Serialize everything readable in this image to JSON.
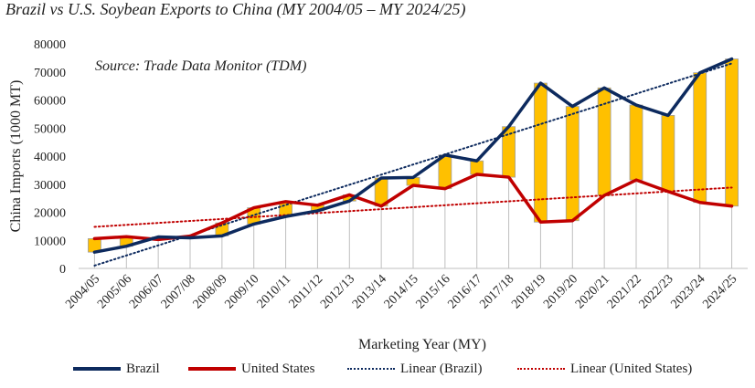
{
  "title": "Brazil vs U.S. Soybean Exports to China (MY 2004/05 – MY 2024/25)",
  "source": "Source: Trade Data Monitor (TDM)",
  "colors": {
    "brazil": "#0d2a5e",
    "united_states": "#c00000",
    "gap_bar": "#ffc000",
    "gap_bar_stroke": "#a0a0a0",
    "grid": "#d9d9d9"
  },
  "chart_data": {
    "type": "line",
    "title": "Brazil vs U.S. Soybean Exports to China (MY 2004/05 – MY 2024/25)",
    "xlabel": "Marketing Year (MY)",
    "ylabel": "China Imports (1000 MT)",
    "ylim": [
      0,
      80000
    ],
    "yticks": [
      0,
      10000,
      20000,
      30000,
      40000,
      50000,
      60000,
      70000,
      80000
    ],
    "grid": false,
    "legend_position": "bottom",
    "categories": [
      "2004/05",
      "2005/06",
      "2006/07",
      "2007/08",
      "2008/09",
      "2009/10",
      "2010/11",
      "2011/12",
      "2012/13",
      "2013/14",
      "2014/15",
      "2015/16",
      "2016/17",
      "2017/18",
      "2018/19",
      "2019/20",
      "2020/21",
      "2021/22",
      "2022/23",
      "2023/24",
      "2024/25"
    ],
    "series": [
      {
        "name": "Brazil",
        "style": "solid",
        "values": [
          5800,
          7900,
          11200,
          10900,
          11600,
          15800,
          18500,
          20500,
          24000,
          32200,
          32400,
          40400,
          38300,
          50500,
          66000,
          57700,
          64300,
          58200,
          54500,
          69700,
          74600
        ]
      },
      {
        "name": "United States",
        "style": "solid",
        "values": [
          10600,
          11300,
          10300,
          11500,
          16200,
          21600,
          23800,
          22500,
          26200,
          22200,
          29600,
          28400,
          33500,
          32500,
          16500,
          17000,
          26000,
          31500,
          27400,
          23500,
          22200
        ]
      },
      {
        "name": "Linear (Brazil)",
        "style": "dotted",
        "values": [
          1000,
          4600,
          8200,
          11800,
          15400,
          19000,
          22600,
          26200,
          29800,
          33400,
          37000,
          40600,
          44200,
          47800,
          51400,
          55000,
          58600,
          62200,
          65800,
          69400,
          73000
        ]
      },
      {
        "name": "Linear (United States)",
        "style": "dotted",
        "values": [
          14800,
          15500,
          16200,
          16900,
          17600,
          18300,
          19000,
          19700,
          20400,
          21100,
          21800,
          22500,
          23200,
          23900,
          24600,
          25300,
          26000,
          26700,
          27400,
          28100,
          28800
        ]
      }
    ],
    "gap_bars": "floating bars spanning between the United States and Brazil values for each marketing year"
  }
}
